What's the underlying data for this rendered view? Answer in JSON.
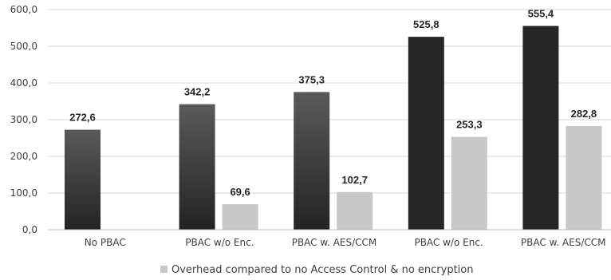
{
  "chart_data": {
    "type": "bar",
    "categories": [
      "No PBAC",
      "PBAC w/o Enc.",
      "PBAC w. AES/CCM",
      "PBAC w/o Enc.",
      "PBAC w. AES/CCM"
    ],
    "series": [
      {
        "values": [
          272.6,
          342.2,
          375.3,
          525.8,
          555.4
        ],
        "labels": [
          "272,6",
          "342,2",
          "375,3",
          "525,8",
          "555,4"
        ],
        "colors": [
          "gradient",
          "gradient",
          "gradient",
          "#262626",
          "#262626"
        ]
      },
      {
        "name": "Overhead compared to no Access Control & no encryption",
        "values": [
          null,
          69.6,
          102.7,
          253.3,
          282.8
        ],
        "labels": [
          "",
          "69,6",
          "102,7",
          "253,3",
          "282,8"
        ],
        "color": "#c8c8c8"
      }
    ],
    "ylim": [
      0,
      600
    ],
    "yticks": [
      "0,0",
      "100,0",
      "200,0",
      "300,0",
      "400,0",
      "500,0",
      "600,0"
    ],
    "grid": true,
    "legend": "bottom",
    "colors": {
      "gradient_top": "#5a5a5a",
      "gradient_bottom": "#232323",
      "grid": "#d9d9d9",
      "axis": "#bfbfbf"
    }
  }
}
